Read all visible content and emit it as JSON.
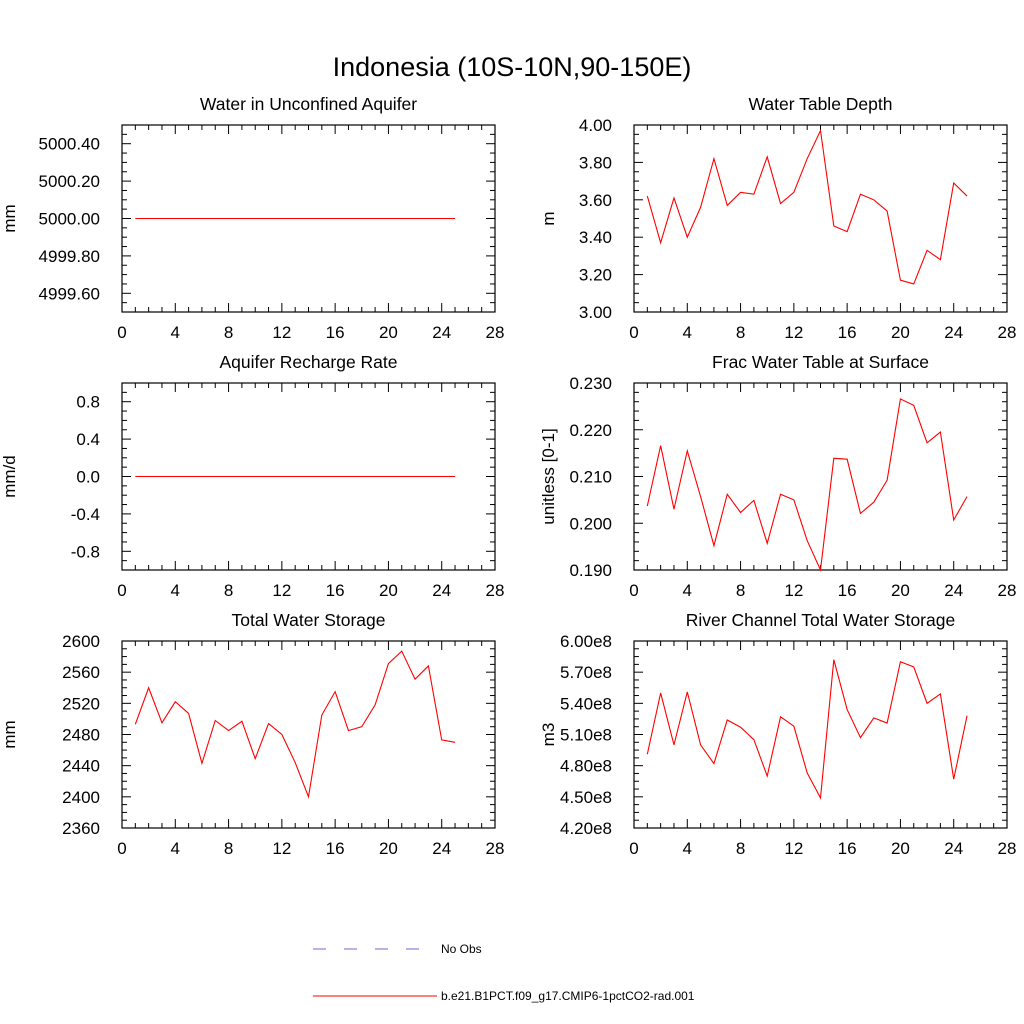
{
  "figure": {
    "title": "Indonesia (10S-10N,90-150E)"
  },
  "colors": {
    "series": "#ff0000",
    "obs": "#6a6acd",
    "axis": "#000000"
  },
  "legend": {
    "placement": "bottom-center",
    "entries": [
      {
        "label": "No Obs",
        "style": "dashed",
        "color": "#6a6acd"
      },
      {
        "label": "b.e21.B1PCT.f09_g17.CMIP6-1pctCO2-rad.001",
        "style": "solid",
        "color": "#ff0000"
      }
    ]
  },
  "chart_data": [
    {
      "id": "water-in-unconfined-aquifer",
      "type": "line",
      "title": "Water in Unconfined Aquifer",
      "xlabel": "",
      "ylabel": "mm",
      "xlim": [
        0,
        28
      ],
      "ylim": [
        4999.5,
        5000.5
      ],
      "xticks": [
        0,
        4,
        8,
        12,
        16,
        20,
        24,
        28
      ],
      "xtick_labels": [
        "0",
        "4",
        "8",
        "12",
        "16",
        "20",
        "24",
        "28"
      ],
      "yticks": [
        4999.6,
        4999.8,
        5000.0,
        5000.2,
        5000.4
      ],
      "ytick_labels": [
        "4999.60",
        "4999.80",
        "5000.00",
        "5000.20",
        "5000.40"
      ],
      "yminor_step": 0.05,
      "x": [
        1,
        25
      ],
      "series": [
        {
          "name": "b.e21.B1PCT.f09_g17.CMIP6-1pctCO2-rad.001",
          "values": [
            5000.0,
            5000.0
          ]
        }
      ]
    },
    {
      "id": "water-table-depth",
      "type": "line",
      "title": "Water Table Depth",
      "xlabel": "",
      "ylabel": "m",
      "xlim": [
        0,
        28
      ],
      "ylim": [
        3.0,
        4.0
      ],
      "xticks": [
        0,
        4,
        8,
        12,
        16,
        20,
        24,
        28
      ],
      "xtick_labels": [
        "0",
        "4",
        "8",
        "12",
        "16",
        "20",
        "24",
        "28"
      ],
      "yticks": [
        3.0,
        3.2,
        3.4,
        3.6,
        3.8,
        4.0
      ],
      "ytick_labels": [
        "3.00",
        "3.20",
        "3.40",
        "3.60",
        "3.80",
        "4.00"
      ],
      "yminor_step": 0.05,
      "x": [
        1,
        2,
        3,
        4,
        5,
        6,
        7,
        8,
        9,
        10,
        11,
        12,
        13,
        14,
        15,
        16,
        17,
        18,
        19,
        20,
        21,
        22,
        23,
        24,
        25
      ],
      "series": [
        {
          "name": "b.e21.B1PCT.f09_g17.CMIP6-1pctCO2-rad.001",
          "values": [
            3.62,
            3.37,
            3.61,
            3.4,
            3.56,
            3.82,
            3.57,
            3.64,
            3.63,
            3.83,
            3.58,
            3.64,
            3.82,
            3.97,
            3.46,
            3.43,
            3.63,
            3.6,
            3.54,
            3.17,
            3.15,
            3.33,
            3.28,
            3.69,
            3.62
          ]
        }
      ]
    },
    {
      "id": "aquifer-recharge-rate",
      "type": "line",
      "title": "Aquifer Recharge Rate",
      "xlabel": "",
      "ylabel": "mm/d",
      "xlim": [
        0,
        28
      ],
      "ylim": [
        -1.0,
        1.0
      ],
      "xticks": [
        0,
        4,
        8,
        12,
        16,
        20,
        24,
        28
      ],
      "xtick_labels": [
        "0",
        "4",
        "8",
        "12",
        "16",
        "20",
        "24",
        "28"
      ],
      "yticks": [
        -0.8,
        -0.4,
        0.0,
        0.4,
        0.8
      ],
      "ytick_labels": [
        "-0.8",
        "-0.4",
        "0.0",
        "0.4",
        "0.8"
      ],
      "yminor_step": 0.1,
      "x": [
        1,
        25
      ],
      "series": [
        {
          "name": "b.e21.B1PCT.f09_g17.CMIP6-1pctCO2-rad.001",
          "values": [
            0.0,
            0.0
          ]
        }
      ]
    },
    {
      "id": "frac-water-table-at-surface",
      "type": "line",
      "title": "Frac Water Table at Surface",
      "xlabel": "",
      "ylabel": "unitless [0-1]",
      "xlim": [
        0,
        28
      ],
      "ylim": [
        0.19,
        0.23
      ],
      "xticks": [
        0,
        4,
        8,
        12,
        16,
        20,
        24,
        28
      ],
      "xtick_labels": [
        "0",
        "4",
        "8",
        "12",
        "16",
        "20",
        "24",
        "28"
      ],
      "yticks": [
        0.19,
        0.2,
        0.21,
        0.22,
        0.23
      ],
      "ytick_labels": [
        "0.190",
        "0.200",
        "0.210",
        "0.220",
        "0.230"
      ],
      "yminor_step": 0.002,
      "x": [
        1,
        2,
        3,
        4,
        5,
        6,
        7,
        8,
        9,
        10,
        11,
        12,
        13,
        14,
        15,
        16,
        17,
        18,
        19,
        20,
        21,
        22,
        23,
        24,
        25
      ],
      "series": [
        {
          "name": "b.e21.B1PCT.f09_g17.CMIP6-1pctCO2-rad.001",
          "values": [
            0.2037,
            0.2166,
            0.203,
            0.2155,
            0.2057,
            0.1952,
            0.2062,
            0.2023,
            0.2049,
            0.1957,
            0.2062,
            0.205,
            0.1963,
            0.19,
            0.2139,
            0.2137,
            0.2021,
            0.2045,
            0.2092,
            0.2266,
            0.2252,
            0.2172,
            0.2195,
            0.2007,
            0.2057
          ]
        }
      ]
    },
    {
      "id": "total-water-storage",
      "type": "line",
      "title": "Total Water Storage",
      "xlabel": "",
      "ylabel": "mm",
      "xlim": [
        0,
        28
      ],
      "ylim": [
        2360,
        2600
      ],
      "xticks": [
        0,
        4,
        8,
        12,
        16,
        20,
        24,
        28
      ],
      "xtick_labels": [
        "0",
        "4",
        "8",
        "12",
        "16",
        "20",
        "24",
        "28"
      ],
      "yticks": [
        2360,
        2400,
        2440,
        2480,
        2520,
        2560,
        2600
      ],
      "ytick_labels": [
        "2360",
        "2400",
        "2440",
        "2480",
        "2520",
        "2560",
        "2600"
      ],
      "yminor_step": 10,
      "x": [
        1,
        2,
        3,
        4,
        5,
        6,
        7,
        8,
        9,
        10,
        11,
        12,
        13,
        14,
        15,
        16,
        17,
        18,
        19,
        20,
        21,
        22,
        23,
        24,
        25
      ],
      "series": [
        {
          "name": "b.e21.B1PCT.f09_g17.CMIP6-1pctCO2-rad.001",
          "values": [
            2493,
            2540,
            2495,
            2522,
            2507,
            2443,
            2498,
            2485,
            2497,
            2449,
            2494,
            2480,
            2444,
            2400,
            2505,
            2535,
            2485,
            2490,
            2518,
            2571,
            2587,
            2551,
            2568,
            2473,
            2470
          ]
        }
      ]
    },
    {
      "id": "river-channel-total-water-storage",
      "type": "line",
      "title": "River Channel Total Water Storage",
      "xlabel": "",
      "ylabel": "m3",
      "xlim": [
        0,
        28
      ],
      "ylim": [
        420000000,
        600000000
      ],
      "xticks": [
        0,
        4,
        8,
        12,
        16,
        20,
        24,
        28
      ],
      "xtick_labels": [
        "0",
        "4",
        "8",
        "12",
        "16",
        "20",
        "24",
        "28"
      ],
      "yticks": [
        420000000,
        450000000,
        480000000,
        510000000,
        540000000,
        570000000,
        600000000
      ],
      "ytick_labels": [
        "4.20e8",
        "4.50e8",
        "4.80e8",
        "5.10e8",
        "5.40e8",
        "5.70e8",
        "6.00e8"
      ],
      "yminor_step": 7500000,
      "x": [
        1,
        2,
        3,
        4,
        5,
        6,
        7,
        8,
        9,
        10,
        11,
        12,
        13,
        14,
        15,
        16,
        17,
        18,
        19,
        20,
        21,
        22,
        23,
        24,
        25
      ],
      "series": [
        {
          "name": "b.e21.B1PCT.f09_g17.CMIP6-1pctCO2-rad.001",
          "values": [
            491000000,
            550000000,
            500000000,
            551000000,
            500000000,
            482000000,
            524000000,
            517000000,
            505000000,
            470000000,
            527000000,
            518000000,
            473000000,
            449000000,
            582000000,
            534000000,
            507000000,
            526000000,
            521000000,
            580000000,
            575000000,
            540000000,
            549000000,
            467000000,
            528000000
          ]
        }
      ]
    }
  ]
}
